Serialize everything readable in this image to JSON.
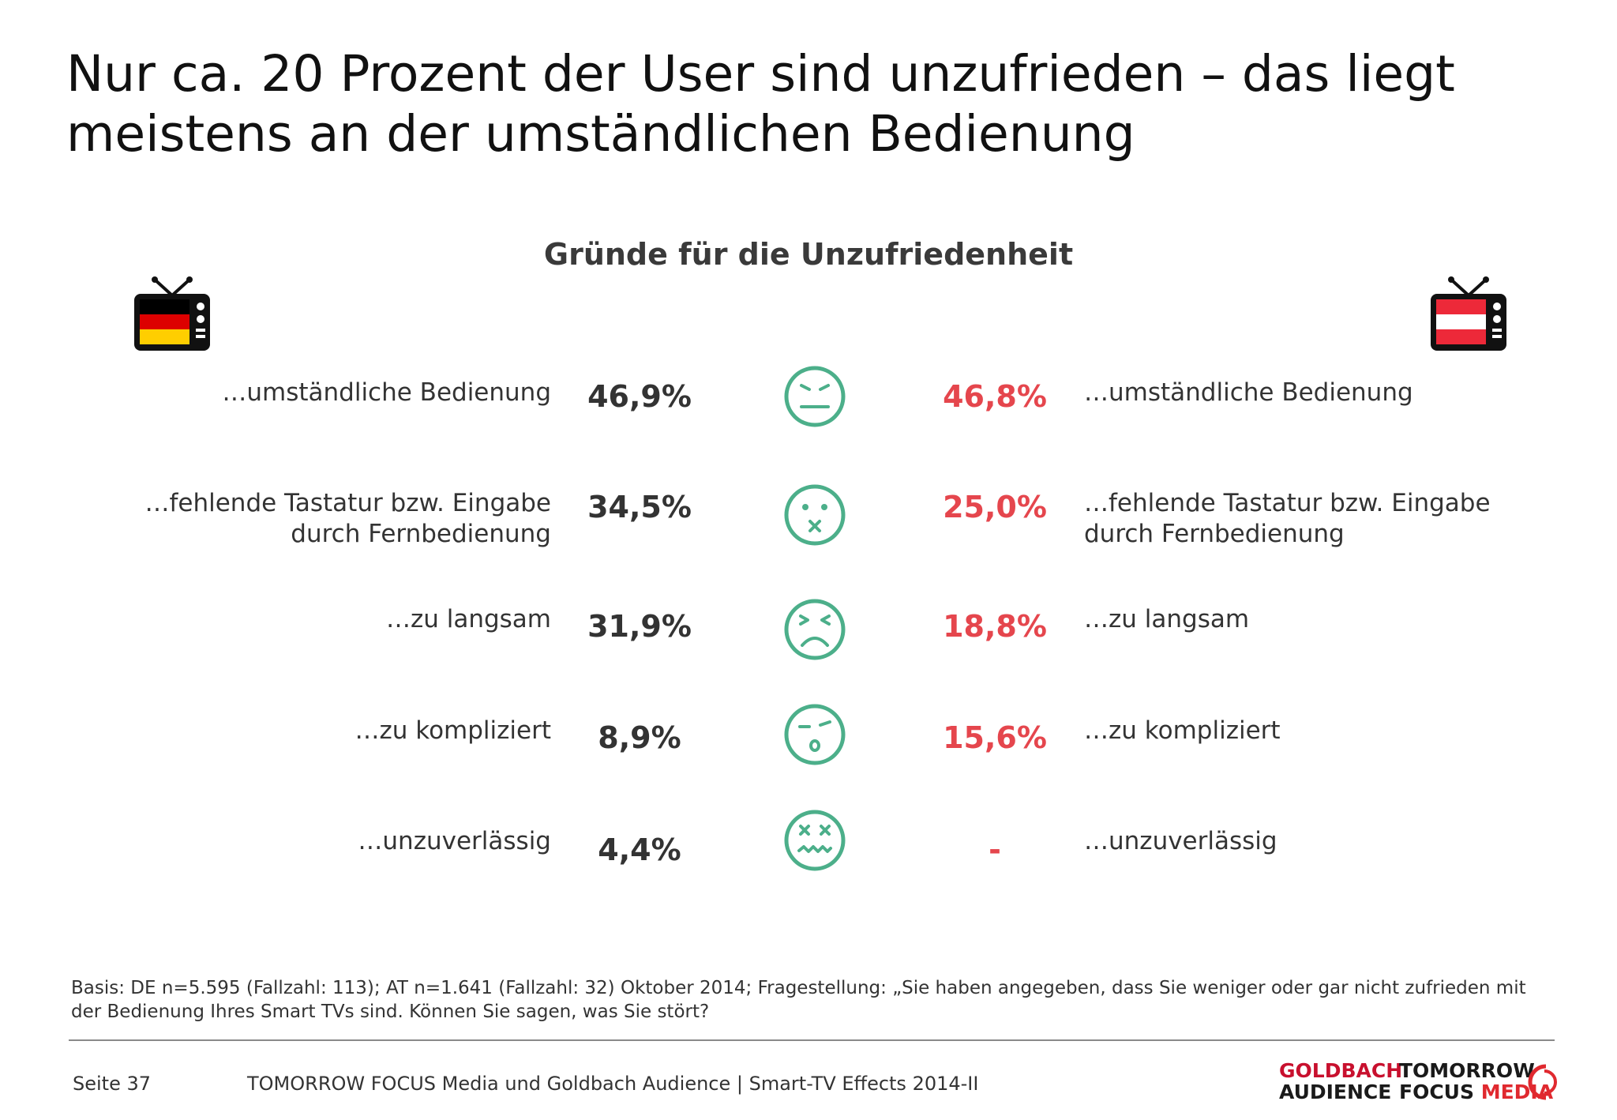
{
  "slide": {
    "title": "Nur ca. 20 Prozent der User sind unzufrieden – das liegt meistens an der umständlichen Bedienung"
  },
  "chart_data": {
    "type": "table",
    "title": "Gründe für die Unzufriedenheit",
    "columns": [
      "DE",
      "AT"
    ],
    "rows": [
      {
        "label": "…umständliche Bedienung",
        "de": "46,9%",
        "at": "46,8%",
        "face": "grimace-face-icon"
      },
      {
        "label": "…fehlende Tastatur bzw. Eingabe durch Fernbedienung",
        "de": "34,5%",
        "at": "25,0%",
        "face": "muted-face-icon"
      },
      {
        "label": "…zu langsam",
        "de": "31,9%",
        "at": "18,8%",
        "face": "frustrated-face-icon"
      },
      {
        "label": "…zu kompliziert",
        "de": "8,9%",
        "at": "15,6%",
        "face": "confused-face-icon"
      },
      {
        "label": "…unzuverlässig",
        "de": "4,4%",
        "at": "-",
        "face": "dizzy-face-icon"
      }
    ],
    "colors": {
      "de_value": "#333333",
      "at_value": "#e5464d",
      "face": "#4caf8a"
    }
  },
  "footer": {
    "basis": "Basis: DE n=5.595 (Fallzahl: 113); AT n=1.641 (Fallzahl: 32) Oktober 2014; Fragestellung: „Sie haben angegeben, dass Sie weniger oder gar nicht zufrieden mit der Bedienung Ihres Smart TVs sind. Können Sie sagen, was Sie stört?",
    "page": "Seite 37",
    "source": "TOMORROW FOCUS Media und Goldbach Audience | Smart-TV Effects 2014-II"
  },
  "logos": {
    "goldbach_line1": "GOLDBACH",
    "goldbach_line2": "AUDIENCE",
    "tfm_line1": "TOMORROW",
    "tfm_line2a": "FOCUS",
    "tfm_line2b": "MEDIA"
  }
}
